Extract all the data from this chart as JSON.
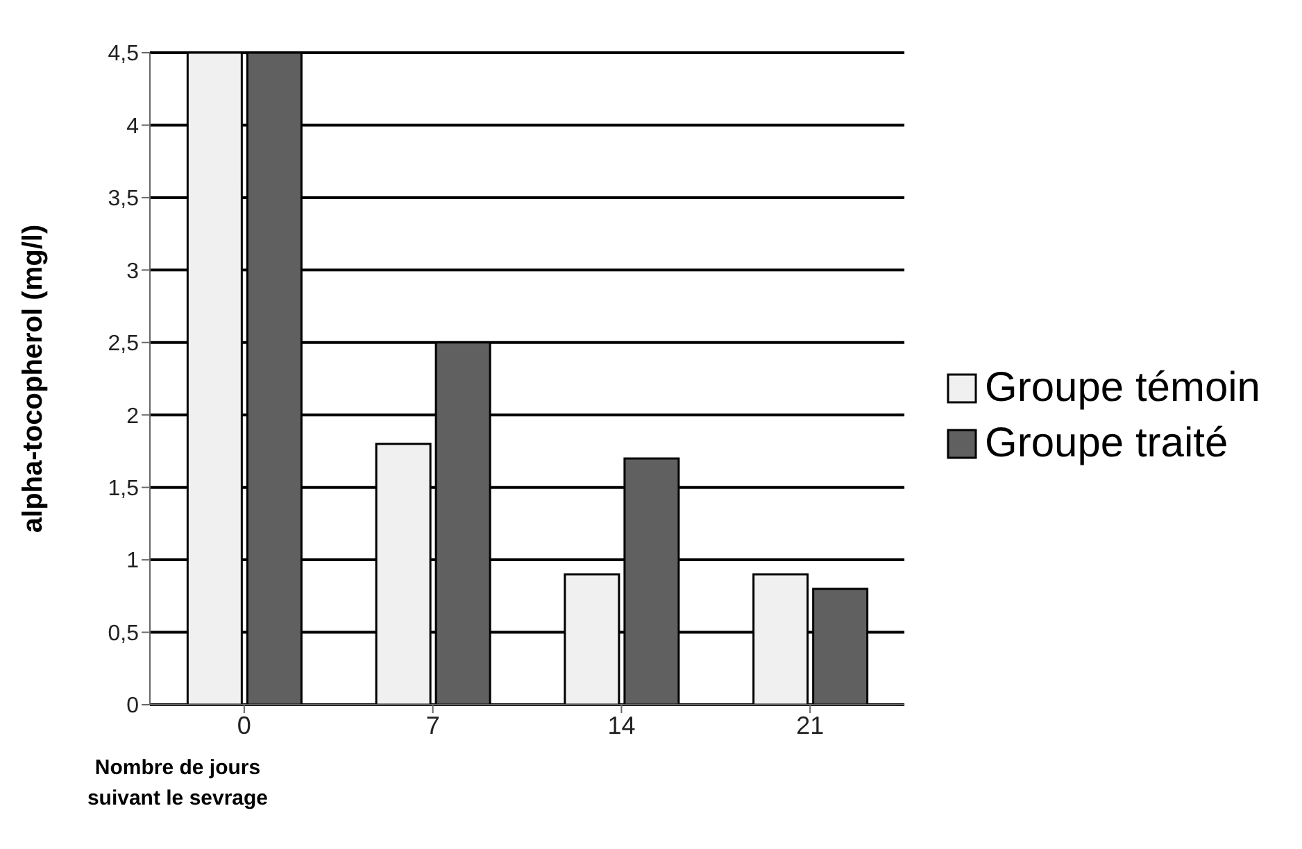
{
  "chart_data": {
    "type": "bar",
    "xlabel": "Nombre de jours\nsuivant le sevrage",
    "ylabel": "alpha-tocopherol (mg/l)",
    "categories": [
      "0",
      "7",
      "14",
      "21"
    ],
    "series": [
      {
        "name": "Groupe témoin",
        "color": "#f0f0f0",
        "values": [
          4.5,
          1.8,
          0.9,
          0.9
        ]
      },
      {
        "name": "Groupe traité",
        "color": "#606060",
        "values": [
          4.5,
          2.5,
          1.7,
          0.8
        ]
      }
    ],
    "ylim": [
      0,
      4.5
    ],
    "yticks": [
      0,
      {
        "value": 0.5,
        "label": "0,5"
      },
      1,
      {
        "value": 1.5,
        "label": "1,5"
      },
      2,
      {
        "value": 2.5,
        "label": "2,5"
      },
      3,
      {
        "value": 3.5,
        "label": "3,5"
      },
      4,
      {
        "value": 4.5,
        "label": "4,5"
      }
    ],
    "grid": "y",
    "legend": "right"
  }
}
